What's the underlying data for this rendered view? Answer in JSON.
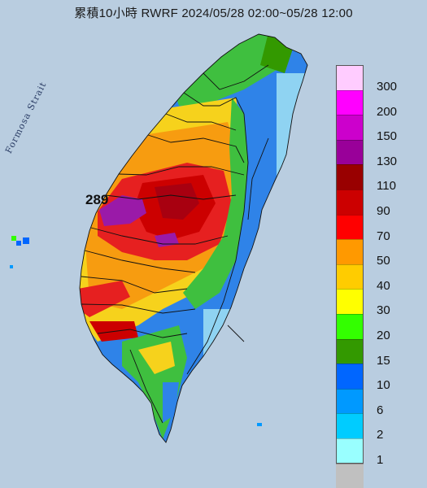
{
  "title": "累積10小時 RWRF 2024/05/28 02:00~05/28 12:00",
  "strait_label": "Formosa Strait",
  "max_value_label": "289",
  "colors": {
    "sea": "#b9cde0",
    "land_blue": "#2f83e8",
    "land_lightblue": "#8fd3f2",
    "land_green": "#3fbf3f",
    "land_yellow": "#f6d21c",
    "land_orange": "#f79c10",
    "land_red": "#e62020",
    "land_darkred": "#a80010",
    "land_purple": "#9a1aa8",
    "boundary": "#111111"
  },
  "legend": {
    "items": [
      {
        "label": "300",
        "color": "#ffccff"
      },
      {
        "label": "200",
        "color": "#ff00ff"
      },
      {
        "label": "150",
        "color": "#cc00cc"
      },
      {
        "label": "130",
        "color": "#990099"
      },
      {
        "label": "110",
        "color": "#990000"
      },
      {
        "label": "90",
        "color": "#cc0000"
      },
      {
        "label": "70",
        "color": "#ff0000"
      },
      {
        "label": "50",
        "color": "#ff9900"
      },
      {
        "label": "40",
        "color": "#ffcc00"
      },
      {
        "label": "30",
        "color": "#ffff00"
      },
      {
        "label": "20",
        "color": "#33ff00"
      },
      {
        "label": "15",
        "color": "#339900"
      },
      {
        "label": "10",
        "color": "#0066ff"
      },
      {
        "label": "6",
        "color": "#0099ff"
      },
      {
        "label": "2",
        "color": "#00ccff"
      },
      {
        "label": "1",
        "color": "#99ffff"
      },
      {
        "label": "",
        "color": "#c0c0c0"
      }
    ]
  }
}
